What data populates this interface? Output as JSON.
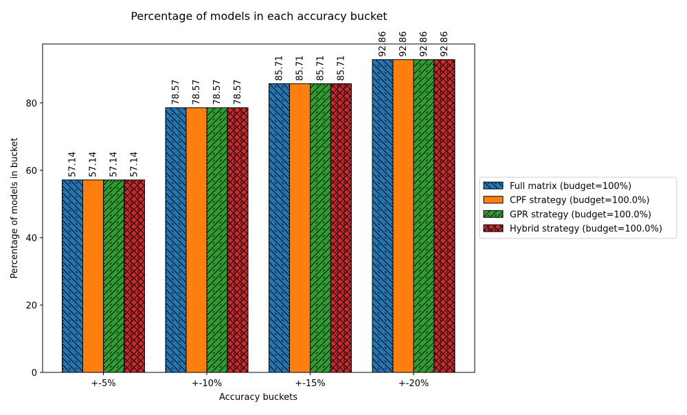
{
  "chart_data": {
    "type": "bar",
    "title": "Percentage of models in each accuracy bucket",
    "xlabel": "Accuracy buckets",
    "ylabel": "Percentage of models in bucket",
    "categories": [
      "+-5%",
      "+-10%",
      "+-15%",
      "+-20%"
    ],
    "ylim": [
      0,
      97.5
    ],
    "yticks": [
      0,
      20,
      40,
      60,
      80
    ],
    "grid": false,
    "legend_position": "right, outside plot",
    "series": [
      {
        "name": "Full matrix (budget=100%)",
        "color": "#1f77b4",
        "hatch": "backslash",
        "values": [
          57.14,
          78.57,
          85.71,
          92.86
        ],
        "labels": [
          "57.14",
          "78.57",
          "85.71",
          "92.86"
        ]
      },
      {
        "name": "CPF strategy (budget=100.0%)",
        "color": "#ff7f0e",
        "hatch": "none",
        "values": [
          57.14,
          78.57,
          85.71,
          92.86
        ],
        "labels": [
          "57.14",
          "78.57",
          "85.71",
          "92.86"
        ]
      },
      {
        "name": "GPR strategy (budget=100.0%)",
        "color": "#2ca02c",
        "hatch": "slash",
        "values": [
          57.14,
          78.57,
          85.71,
          92.86
        ],
        "labels": [
          "57.14",
          "78.57",
          "85.71",
          "92.86"
        ]
      },
      {
        "name": "Hybrid strategy (budget=100.0%)",
        "color": "#d62728",
        "hatch": "cross",
        "values": [
          57.14,
          78.57,
          85.71,
          92.86
        ],
        "labels": [
          "57.14",
          "78.57",
          "85.71",
          "92.86"
        ]
      }
    ]
  }
}
